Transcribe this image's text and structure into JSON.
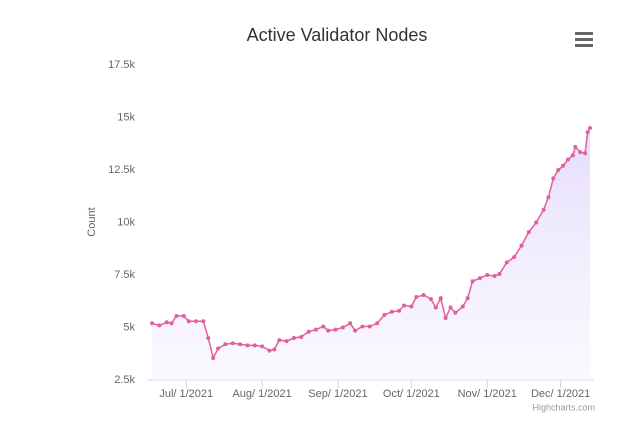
{
  "chart_data": {
    "type": "area",
    "title": "Active Validator Nodes",
    "y_label": "Count",
    "credit": "Highcharts.com",
    "color": "#e0609a",
    "fill": "#ece6fb",
    "grid": false,
    "xlim": [
      "2021-06-17",
      "2021-12-13"
    ],
    "xticks": [
      {
        "value": "2021-07-01",
        "label": "Jul/ 1/2021"
      },
      {
        "value": "2021-08-01",
        "label": "Aug/ 1/2021"
      },
      {
        "value": "2021-09-01",
        "label": "Sep/ 1/2021"
      },
      {
        "value": "2021-10-01",
        "label": "Oct/ 1/2021"
      },
      {
        "value": "2021-11-01",
        "label": "Nov/ 1/2021"
      },
      {
        "value": "2021-12-01",
        "label": "Dec/ 1/2021"
      }
    ],
    "ylim": [
      2500,
      17500
    ],
    "yticks": [
      {
        "value": 2500,
        "label": "2.5k"
      },
      {
        "value": 5000,
        "label": "5k"
      },
      {
        "value": 7500,
        "label": "7.5k"
      },
      {
        "value": 10000,
        "label": "10k"
      },
      {
        "value": 12500,
        "label": "12.5k"
      },
      {
        "value": 15000,
        "label": "15k"
      },
      {
        "value": 17500,
        "label": "17.5k"
      }
    ],
    "x": [
      "2021-06-17",
      "2021-06-20",
      "2021-06-23",
      "2021-06-25",
      "2021-06-27",
      "2021-06-30",
      "2021-07-02",
      "2021-07-05",
      "2021-07-08",
      "2021-07-10",
      "2021-07-12",
      "2021-07-14",
      "2021-07-17",
      "2021-07-20",
      "2021-07-23",
      "2021-07-26",
      "2021-07-29",
      "2021-08-01",
      "2021-08-04",
      "2021-08-06",
      "2021-08-08",
      "2021-08-11",
      "2021-08-14",
      "2021-08-17",
      "2021-08-20",
      "2021-08-23",
      "2021-08-26",
      "2021-08-28",
      "2021-08-31",
      "2021-09-03",
      "2021-09-06",
      "2021-09-08",
      "2021-09-11",
      "2021-09-14",
      "2021-09-17",
      "2021-09-20",
      "2021-09-23",
      "2021-09-26",
      "2021-09-28",
      "2021-10-01",
      "2021-10-03",
      "2021-10-06",
      "2021-10-09",
      "2021-10-11",
      "2021-10-13",
      "2021-10-15",
      "2021-10-17",
      "2021-10-19",
      "2021-10-22",
      "2021-10-24",
      "2021-10-26",
      "2021-10-29",
      "2021-11-01",
      "2021-11-04",
      "2021-11-06",
      "2021-11-09",
      "2021-11-12",
      "2021-11-15",
      "2021-11-18",
      "2021-11-21",
      "2021-11-24",
      "2021-11-26",
      "2021-11-28",
      "2021-11-30",
      "2021-12-02",
      "2021-12-04",
      "2021-12-06",
      "2021-12-07",
      "2021-12-09",
      "2021-12-11",
      "2021-12-12",
      "2021-12-13"
    ],
    "values": [
      5200,
      5100,
      5250,
      5200,
      5550,
      5550,
      5300,
      5300,
      5300,
      4500,
      3550,
      4000,
      4200,
      4250,
      4200,
      4150,
      4150,
      4100,
      3900,
      3950,
      4400,
      4350,
      4500,
      4550,
      4800,
      4900,
      5050,
      4850,
      4900,
      5000,
      5200,
      4850,
      5050,
      5050,
      5200,
      5600,
      5750,
      5800,
      6050,
      6000,
      6450,
      6550,
      6350,
      5950,
      6400,
      5450,
      5950,
      5700,
      6000,
      6400,
      7200,
      7350,
      7500,
      7450,
      7550,
      8100,
      8350,
      8900,
      9550,
      10000,
      10600,
      11200,
      12100,
      12500,
      12700,
      13000,
      13200,
      13600,
      13350,
      13300,
      14300,
      14500
    ]
  }
}
